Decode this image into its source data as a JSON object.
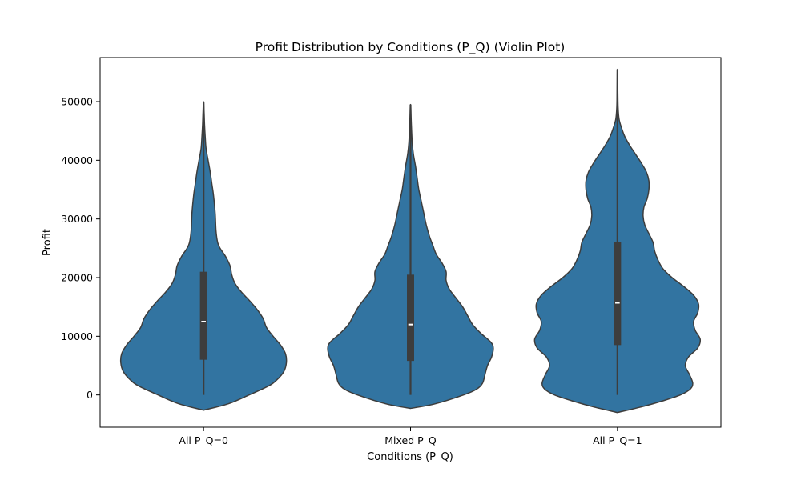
{
  "chart_data": {
    "type": "violin",
    "title": "Profit Distribution by Conditions (P_Q) (Violin Plot)",
    "xlabel": "Conditions (P_Q)",
    "ylabel": "Profit",
    "categories": [
      "All P_Q=0",
      "Mixed P_Q",
      "All P_Q=1"
    ],
    "ylim": [
      -5500,
      57500
    ],
    "yticks": [
      0,
      10000,
      20000,
      30000,
      40000,
      50000
    ],
    "ytick_labels": [
      "0",
      "10000",
      "20000",
      "30000",
      "40000",
      "50000"
    ],
    "grid": false,
    "colors": {
      "fill": "#3274a1",
      "edge": "#3d3d3d",
      "box": "#3d3d3d",
      "median": "#ffffff"
    },
    "violins": [
      {
        "category": "All P_Q=0",
        "min": 0,
        "q1": 6000,
        "median": 12500,
        "q3": 21000,
        "max": 50000,
        "profile": [
          [
            -2600,
            0.0
          ],
          [
            -1500,
            0.3
          ],
          [
            0,
            0.55
          ],
          [
            1500,
            0.78
          ],
          [
            2500,
            0.88
          ],
          [
            4000,
            0.97
          ],
          [
            5500,
            1.0
          ],
          [
            7000,
            0.99
          ],
          [
            8500,
            0.93
          ],
          [
            10000,
            0.84
          ],
          [
            11500,
            0.76
          ],
          [
            13000,
            0.72
          ],
          [
            14500,
            0.65
          ],
          [
            16000,
            0.56
          ],
          [
            17500,
            0.46
          ],
          [
            19000,
            0.38
          ],
          [
            20500,
            0.34
          ],
          [
            22000,
            0.32
          ],
          [
            23500,
            0.27
          ],
          [
            25000,
            0.2
          ],
          [
            26000,
            0.17
          ],
          [
            28000,
            0.15
          ],
          [
            31000,
            0.14
          ],
          [
            34000,
            0.12
          ],
          [
            36000,
            0.1
          ],
          [
            38000,
            0.08
          ],
          [
            40000,
            0.055
          ],
          [
            42000,
            0.03
          ],
          [
            44000,
            0.02
          ],
          [
            46000,
            0.012
          ],
          [
            48000,
            0.007
          ],
          [
            50000,
            0.0
          ]
        ]
      },
      {
        "category": "Mixed P_Q",
        "min": 0,
        "q1": 5800,
        "median": 12000,
        "q3": 20500,
        "max": 49500,
        "profile": [
          [
            -2300,
            0.0
          ],
          [
            -1500,
            0.3
          ],
          [
            0,
            0.64
          ],
          [
            1000,
            0.8
          ],
          [
            2000,
            0.87
          ],
          [
            3500,
            0.9
          ],
          [
            5000,
            0.93
          ],
          [
            6500,
            0.98
          ],
          [
            8000,
            1.0
          ],
          [
            9000,
            0.97
          ],
          [
            10500,
            0.85
          ],
          [
            12000,
            0.75
          ],
          [
            13500,
            0.69
          ],
          [
            15000,
            0.63
          ],
          [
            16500,
            0.55
          ],
          [
            18000,
            0.47
          ],
          [
            19500,
            0.43
          ],
          [
            21000,
            0.43
          ],
          [
            22500,
            0.38
          ],
          [
            24000,
            0.31
          ],
          [
            25500,
            0.27
          ],
          [
            27000,
            0.23
          ],
          [
            29000,
            0.19
          ],
          [
            31000,
            0.16
          ],
          [
            33000,
            0.13
          ],
          [
            35000,
            0.1
          ],
          [
            37000,
            0.08
          ],
          [
            39000,
            0.06
          ],
          [
            41000,
            0.035
          ],
          [
            43000,
            0.02
          ],
          [
            46000,
            0.01
          ],
          [
            49500,
            0.0
          ]
        ]
      },
      {
        "category": "All P_Q=1",
        "min": 0,
        "q1": 8500,
        "median": 15700,
        "q3": 26000,
        "max": 55500,
        "profile": [
          [
            -3000,
            0.0
          ],
          [
            -2000,
            0.3
          ],
          [
            -1000,
            0.55
          ],
          [
            0,
            0.76
          ],
          [
            1000,
            0.88
          ],
          [
            2000,
            0.91
          ],
          [
            3500,
            0.87
          ],
          [
            5000,
            0.82
          ],
          [
            6500,
            0.86
          ],
          [
            8000,
            0.97
          ],
          [
            9500,
            1.0
          ],
          [
            11000,
            0.94
          ],
          [
            12500,
            0.92
          ],
          [
            14000,
            0.97
          ],
          [
            15500,
            0.98
          ],
          [
            17000,
            0.92
          ],
          [
            18500,
            0.8
          ],
          [
            20000,
            0.66
          ],
          [
            21500,
            0.55
          ],
          [
            23000,
            0.49
          ],
          [
            24500,
            0.45
          ],
          [
            26000,
            0.43
          ],
          [
            27500,
            0.38
          ],
          [
            29000,
            0.33
          ],
          [
            30500,
            0.31
          ],
          [
            32000,
            0.32
          ],
          [
            33500,
            0.36
          ],
          [
            35000,
            0.38
          ],
          [
            36500,
            0.38
          ],
          [
            38000,
            0.35
          ],
          [
            39500,
            0.29
          ],
          [
            41000,
            0.22
          ],
          [
            42500,
            0.15
          ],
          [
            44000,
            0.09
          ],
          [
            45500,
            0.05
          ],
          [
            47000,
            0.02
          ],
          [
            49000,
            0.008
          ],
          [
            52000,
            0.004
          ],
          [
            55500,
            0.0
          ]
        ]
      }
    ]
  }
}
